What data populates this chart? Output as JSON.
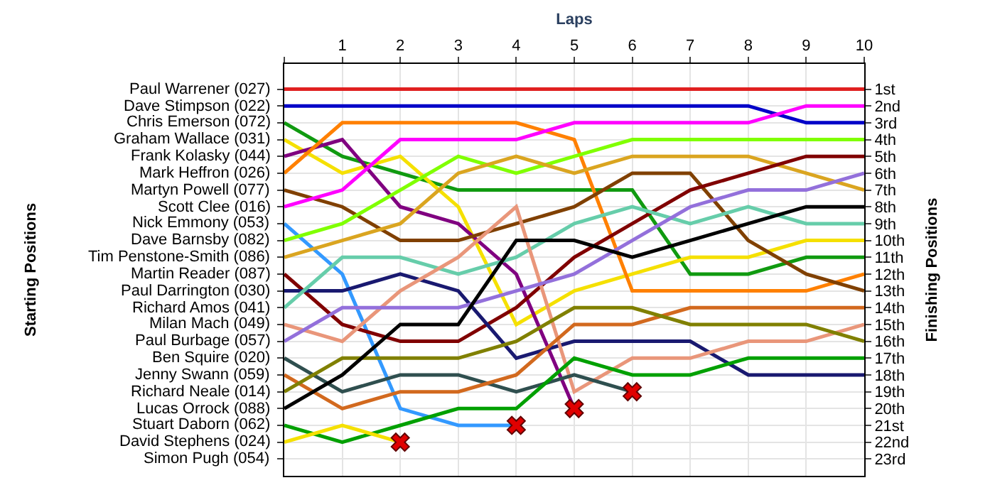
{
  "chart_data": {
    "type": "line",
    "xlabel": "Laps",
    "y2label": "Finishing Positions",
    "x": [
      0,
      1,
      2,
      3,
      4,
      5,
      6,
      7,
      8,
      9,
      10
    ],
    "xlim": [
      0,
      10
    ],
    "xticks": [
      {
        "value": 0,
        "label": null
      },
      1,
      2,
      3,
      4,
      5,
      6,
      7,
      8,
      9,
      10
    ],
    "annotations": [
      "Starting Positions",
      "Simon Pugh (054)"
    ],
    "y2lim": [
      24,
      -0.5
    ],
    "y2ticks": [
      {
        "value": 1,
        "label": "1st"
      },
      {
        "value": 2,
        "label": "2nd"
      },
      {
        "value": 3,
        "label": "3rd"
      },
      {
        "value": 4,
        "label": "4th"
      },
      {
        "value": 5,
        "label": "5th"
      },
      {
        "value": 6,
        "label": "6th"
      },
      {
        "value": 7,
        "label": "7th"
      },
      {
        "value": 8,
        "label": "8th"
      },
      {
        "value": 9,
        "label": "9th"
      },
      {
        "value": 10,
        "label": "10th"
      },
      {
        "value": 11,
        "label": "11th"
      },
      {
        "value": 12,
        "label": "12th"
      },
      {
        "value": 13,
        "label": "13th"
      },
      {
        "value": 14,
        "label": "14th"
      },
      {
        "value": 15,
        "label": "15th"
      },
      {
        "value": 16,
        "label": "16th"
      },
      {
        "value": 17,
        "label": "17th"
      },
      {
        "value": 18,
        "label": "18th"
      },
      {
        "value": 19,
        "label": "19th"
      },
      {
        "value": 20,
        "label": "20th"
      },
      {
        "value": 21,
        "label": "21st"
      },
      {
        "value": 22,
        "label": "22nd"
      },
      {
        "value": 23,
        "label": "23rd"
      }
    ],
    "grid": true,
    "legend": false,
    "marker": "none",
    "line_style": "solid",
    "series": [
      {
        "name": "Paul Warrener (027)",
        "axis": "y2",
        "color": "#e02020",
        "values": [
          1,
          1,
          1,
          1,
          1,
          1,
          1,
          1,
          1,
          1,
          1
        ]
      },
      {
        "name": "Dave Stimpson (022)",
        "axis": "y2",
        "color": "#0000c8",
        "values": [
          2,
          2,
          2,
          2,
          2,
          2,
          2,
          2,
          2,
          3,
          3
        ]
      },
      {
        "name": "Chris Emerson (072)",
        "axis": "y2",
        "color": "#109a10",
        "values": [
          3,
          5,
          6,
          7,
          7,
          7,
          7,
          12,
          12,
          11,
          11
        ]
      },
      {
        "name": "Graham Wallace (031)",
        "axis": "y2",
        "color": "#f5e000",
        "values": [
          4,
          6,
          5,
          8,
          15,
          13,
          12,
          11,
          11,
          10,
          10
        ]
      },
      {
        "name": "Frank Kolasky (044)",
        "axis": "y2",
        "color": "#800080",
        "values": [
          5,
          4,
          8,
          9,
          12,
          20,
          null,
          null,
          null,
          null,
          null
        ]
      },
      {
        "name": "Mark Heffron (026)",
        "axis": "y2",
        "color": "#ff8000",
        "values": [
          6,
          3,
          3,
          3,
          3,
          4,
          13,
          13,
          13,
          13,
          12
        ]
      },
      {
        "name": "Martyn Powell (077)",
        "axis": "y2",
        "color": "#804000",
        "values": [
          7,
          8,
          10,
          10,
          9,
          8,
          6,
          6,
          10,
          12,
          13
        ]
      },
      {
        "name": "Scott Clee (016)",
        "axis": "y2",
        "color": "#ff00ff",
        "values": [
          8,
          7,
          4,
          4,
          4,
          3,
          3,
          3,
          3,
          2,
          2
        ]
      },
      {
        "name": "Nick Emmony (053)",
        "axis": "y2",
        "color": "#3399ff",
        "values": [
          9,
          12,
          20,
          21,
          21,
          null,
          null,
          null,
          null,
          null,
          null
        ]
      },
      {
        "name": "Dave Barnsby (082)",
        "axis": "y2",
        "color": "#80ff00",
        "values": [
          10,
          9,
          7,
          5,
          6,
          5,
          4,
          4,
          4,
          4,
          4
        ]
      },
      {
        "name": "Tim Penstone-Smith (086)",
        "axis": "y2",
        "color": "#daa520",
        "values": [
          11,
          10,
          9,
          6,
          5,
          6,
          5,
          5,
          5,
          6,
          7
        ]
      },
      {
        "name": "Martin Reader (087)",
        "axis": "y2",
        "color": "#800000",
        "values": [
          12,
          15,
          16,
          16,
          14,
          11,
          9,
          7,
          6,
          5,
          5
        ]
      },
      {
        "name": "Paul Darrington (030)",
        "axis": "y2",
        "color": "#191970",
        "values": [
          13,
          13,
          12,
          13,
          17,
          16,
          16,
          16,
          18,
          18,
          18
        ]
      },
      {
        "name": "Richard Amos (041)",
        "axis": "y2",
        "color": "#66cdaa",
        "values": [
          14,
          11,
          11,
          12,
          11,
          9,
          8,
          9,
          8,
          9,
          9
        ]
      },
      {
        "name": "Milan Mach (049)",
        "axis": "y2",
        "color": "#e9967a",
        "values": [
          15,
          16,
          13,
          11,
          8,
          19,
          17,
          17,
          16,
          16,
          15
        ]
      },
      {
        "name": "Paul Burbage (057)",
        "axis": "y2",
        "color": "#9370db",
        "values": [
          16,
          14,
          14,
          14,
          13,
          12,
          10,
          8,
          7,
          7,
          6
        ]
      },
      {
        "name": "Ben Squire (020)",
        "axis": "y2",
        "color": "#2f4f4f",
        "values": [
          17,
          19,
          18,
          18,
          19,
          18,
          19,
          null,
          null,
          null,
          null
        ]
      },
      {
        "name": "Jenny Swann (059)",
        "axis": "y2",
        "color": "#d2691e",
        "values": [
          18,
          20,
          19,
          19,
          18,
          15,
          15,
          14,
          14,
          14,
          14
        ]
      },
      {
        "name": "Richard Neale (014)",
        "axis": "y2",
        "color": "#808000",
        "values": [
          19,
          17,
          17,
          17,
          16,
          14,
          14,
          15,
          15,
          15,
          16
        ]
      },
      {
        "name": "Lucas Orrock (088)",
        "axis": "y2",
        "color": "#000000",
        "values": [
          20,
          18,
          15,
          15,
          10,
          10,
          11,
          10,
          9,
          8,
          8
        ]
      },
      {
        "name": "Stuart Daborn (062)",
        "axis": "y2",
        "color": "#00a000",
        "values": [
          21,
          22,
          21,
          20,
          20,
          17,
          18,
          18,
          17,
          17,
          17
        ]
      },
      {
        "name": "David Stephens (024)",
        "axis": "y2",
        "color": "#f5e000",
        "values": [
          22,
          21,
          22,
          null,
          null,
          null,
          null,
          null,
          null,
          null,
          null
        ]
      },
      {
        "type": "scatter",
        "axis": "y2",
        "marker": "cross",
        "color": "#e00000",
        "x": [
          2,
          4,
          5,
          6
        ],
        "values": [
          22,
          21,
          20,
          19
        ]
      }
    ]
  }
}
